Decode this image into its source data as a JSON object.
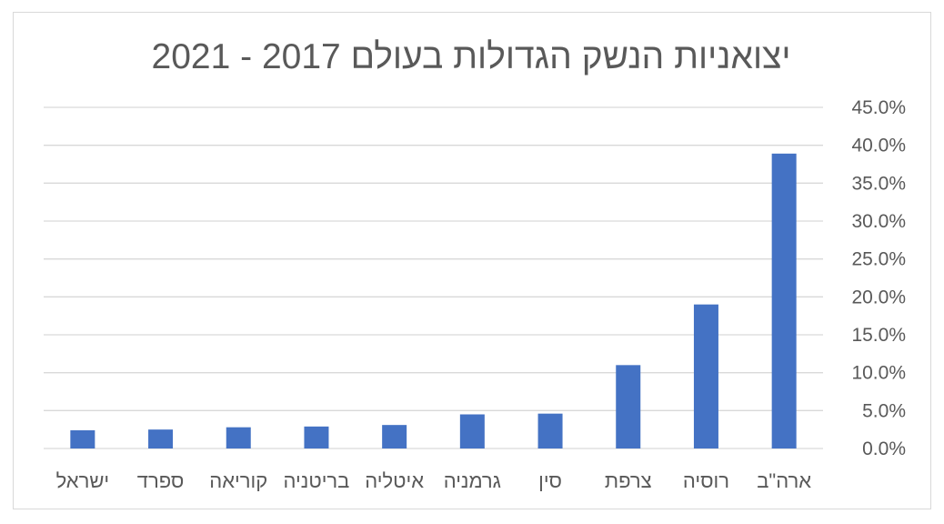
{
  "chart_data": {
    "type": "bar",
    "title": "יצואניות הנשק הגדולות בעולם 2017 - 2021",
    "categories": [
      "ארה\"ב",
      "רוסיה",
      "צרפת",
      "סין",
      "גרמניה",
      "איטליה",
      "בריטניה",
      "קוריאה",
      "ספרד",
      "ישראל"
    ],
    "values": [
      38.9,
      19.0,
      11.0,
      4.6,
      4.5,
      3.1,
      2.9,
      2.8,
      2.5,
      2.4
    ],
    "ylim": [
      0,
      45
    ],
    "yticks": [
      "0.0%",
      "5.0%",
      "10.0%",
      "15.0%",
      "20.0%",
      "25.0%",
      "30.0%",
      "35.0%",
      "40.0%",
      "45.0%"
    ],
    "grid": true,
    "legend": "none",
    "xlabel": "",
    "ylabel": "",
    "bar_color": "#4472C4"
  }
}
